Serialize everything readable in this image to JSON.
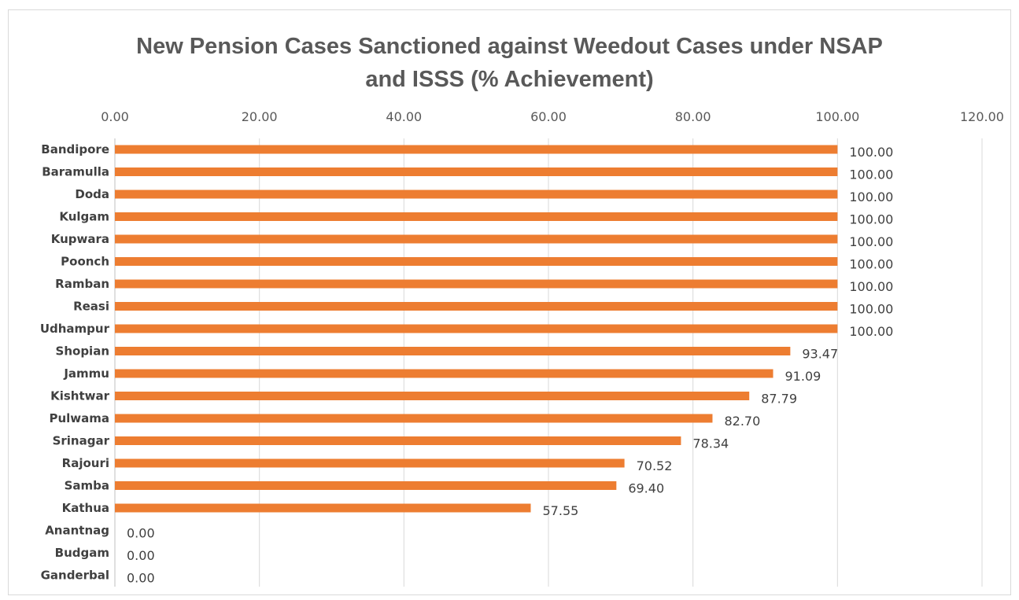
{
  "chart_data": {
    "type": "bar",
    "orientation": "horizontal",
    "title_lines": [
      "New Pension Cases Sanctioned against Weedout Cases under NSAP",
      "and ISSS (% Achievement)"
    ],
    "categories": [
      "Bandipore",
      "Baramulla",
      "Doda",
      "Kulgam",
      "Kupwara",
      "Poonch",
      "Ramban",
      "Reasi",
      "Udhampur",
      "Shopian",
      "Jammu",
      "Kishtwar",
      "Pulwama",
      "Srinagar",
      "Rajouri",
      "Samba",
      "Kathua",
      "Anantnag",
      "Budgam",
      "Ganderbal"
    ],
    "values": [
      100,
      100,
      100,
      100,
      100,
      100,
      100,
      100,
      100,
      93.47,
      91.09,
      87.79,
      82.7,
      78.34,
      70.52,
      69.4,
      57.55,
      0,
      0,
      0
    ],
    "value_labels": [
      "100.00",
      "100.00",
      "100.00",
      "100.00",
      "100.00",
      "100.00",
      "100.00",
      "100.00",
      "100.00",
      "93.47",
      "91.09",
      "87.79",
      "82.70",
      "78.34",
      "70.52",
      "69.40",
      "57.55",
      "0.00",
      "0.00",
      "0.00"
    ],
    "xlim": [
      0,
      120
    ],
    "x_ticks": [
      0,
      20,
      40,
      60,
      80,
      100,
      120
    ],
    "x_tick_labels": [
      "0.00",
      "20.00",
      "40.00",
      "60.00",
      "80.00",
      "100.00",
      "120.00"
    ],
    "axis_position": "top",
    "grid": true,
    "legend": "none",
    "colors": {
      "bar": "#ed7d31",
      "grid": "#d9d9d9"
    }
  }
}
